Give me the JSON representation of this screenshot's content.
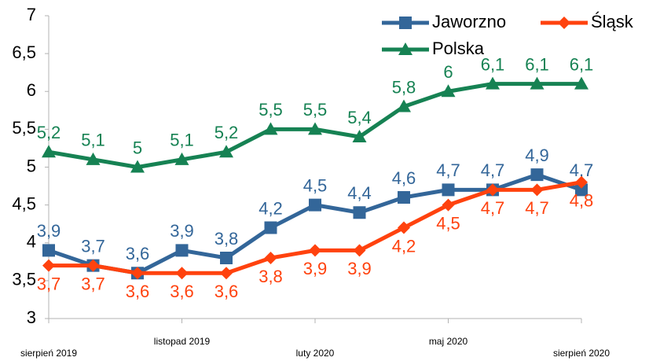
{
  "chart_data": {
    "type": "line",
    "categories": [
      "sierpień 2019",
      null,
      null,
      "listopad 2019",
      null,
      null,
      "luty 2020",
      null,
      null,
      "maj 2020",
      null,
      null,
      "sierpień 2020"
    ],
    "series": [
      {
        "name": "Jaworzno",
        "color": "#336699",
        "marker": "square",
        "values": [
          3.9,
          3.7,
          3.6,
          3.9,
          3.8,
          4.2,
          4.5,
          4.4,
          4.6,
          4.7,
          4.7,
          4.9,
          4.7
        ],
        "value_labels": [
          "3,9",
          "3,7",
          "3,6",
          "3,9",
          "3,8",
          "4,2",
          "4,5",
          "4,4",
          "4,6",
          "4,7",
          "4,7",
          "4,9",
          "4,7"
        ],
        "label_position": "above"
      },
      {
        "name": "Śląsk",
        "color": "#ff420e",
        "marker": "diamond",
        "values": [
          3.7,
          3.7,
          3.6,
          3.6,
          3.6,
          3.8,
          3.9,
          3.9,
          4.2,
          4.5,
          4.7,
          4.7,
          4.8
        ],
        "value_labels": [
          "3,7",
          "3,7",
          "3,6",
          "3,6",
          "3,6",
          "3,8",
          "3,9",
          "3,9",
          "4,2",
          "4,5",
          "4,7",
          "4,7",
          "4,8"
        ],
        "label_position": "below"
      },
      {
        "name": "Polska",
        "color": "#168253",
        "marker": "triangle",
        "values": [
          5.2,
          5.1,
          5,
          5.1,
          5.2,
          5.5,
          5.5,
          5.4,
          5.8,
          6,
          6.1,
          6.1,
          6.1
        ],
        "value_labels": [
          "5,2",
          "5,1",
          "5",
          "5,1",
          "5,2",
          "5,5",
          "5,5",
          "5,4",
          "5,8",
          "6",
          "6,1",
          "6,1",
          "6,1"
        ],
        "label_position": "above"
      }
    ],
    "ylim": [
      3,
      7
    ],
    "yticks": [
      3,
      {
        "value": 3.5,
        "label": "3,5"
      },
      4,
      {
        "value": 4.5,
        "label": "4,5"
      },
      5,
      {
        "value": 5.5,
        "label": "5,5"
      },
      6,
      {
        "value": 6.5,
        "label": "6,5"
      },
      7
    ],
    "grid": false,
    "legend": "top-right"
  }
}
